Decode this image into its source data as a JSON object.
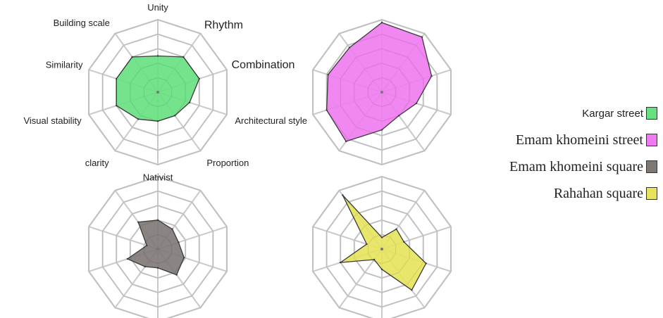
{
  "chart_data": {
    "type": "radar",
    "axes": [
      "Unity",
      "Rhythm",
      "Combination",
      "Architectural style",
      "Proportion",
      "Nativist",
      "clarity",
      "Visual stability",
      "Similarity",
      "Building scale"
    ],
    "rmax": 5,
    "grid_rings": 5,
    "series": [
      {
        "name": "Kargar street",
        "color": "#66e080",
        "values": [
          2.5,
          3.0,
          3.0,
          2.3,
          2.0,
          2.0,
          2.3,
          3.0,
          3.0,
          3.0
        ]
      },
      {
        "name": "Emam khomeini street",
        "color": "#f07af0",
        "values": [
          4.8,
          4.7,
          3.6,
          2.5,
          2.0,
          2.6,
          4.2,
          4.0,
          3.9,
          3.8
        ]
      },
      {
        "name": "Emam khomeini square",
        "color": "#7d7874",
        "values": [
          2.0,
          1.7,
          1.5,
          1.9,
          2.2,
          1.3,
          1.5,
          2.2,
          0.8,
          2.3
        ]
      },
      {
        "name": "Rahahan square",
        "color": "#e7e35c",
        "values": [
          0.8,
          1.7,
          1.6,
          3.2,
          3.5,
          1.4,
          0.9,
          3.0,
          1.1,
          4.6
        ]
      }
    ]
  },
  "legend": {
    "items": [
      {
        "label": "Kargar street",
        "color": "#66e080"
      },
      {
        "label": "Emam khomeini street",
        "color": "#f07af0"
      },
      {
        "label": "Emam khomeini square",
        "color": "#7d7874"
      },
      {
        "label": "Rahahan square",
        "color": "#e7e35c"
      }
    ]
  }
}
